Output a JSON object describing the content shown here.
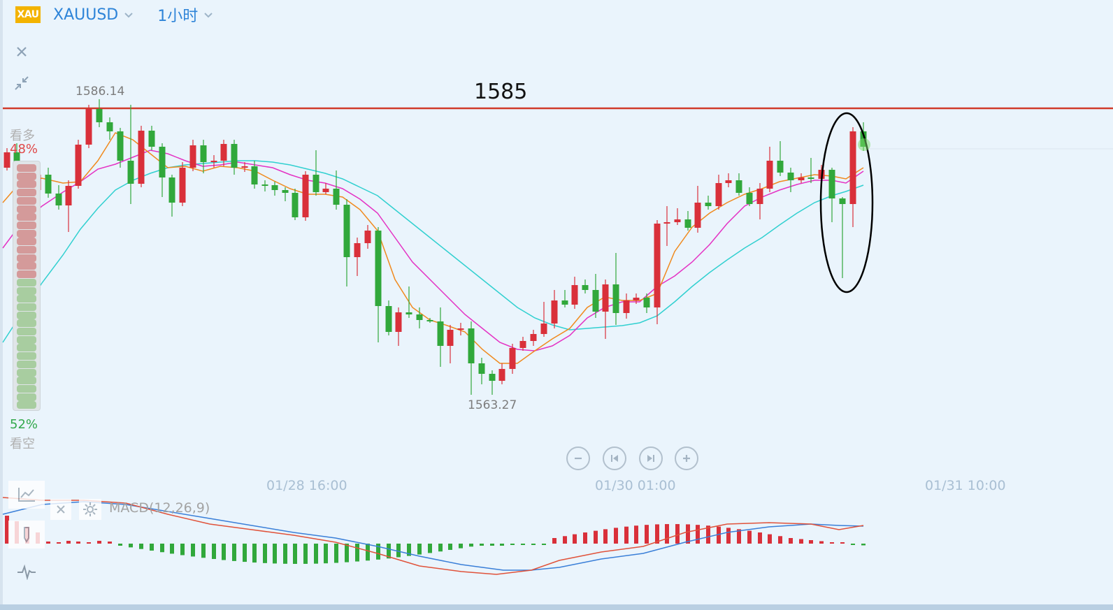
{
  "header": {
    "logo_text": "XAU",
    "symbol": "XAUUSD",
    "timeframe": "1小时"
  },
  "chart": {
    "high_label": "1586.14",
    "low_label": "1563.27",
    "resistance_label": "1585",
    "time_labels": [
      "01/28 16:00",
      "01/30 01:00",
      "01/31 10:00"
    ],
    "colors": {
      "up": "#d9303a",
      "down": "#31a83b",
      "ma_short": "#f08a1e",
      "ma_mid": "#e432c4",
      "ma_long": "#31d0d0",
      "resistance": "#d03a2a",
      "macd_dif": "#3a7fd8",
      "macd_dea": "#e0523a"
    }
  },
  "sentiment": {
    "bull_word": "看多",
    "bull_pct": "48%",
    "bear_pct": "52%",
    "bear_word": "看空",
    "bull_share": 0.48,
    "bear_share": 0.52
  },
  "macd": {
    "title": "MACD(12,26,9)"
  },
  "icons": {
    "close": "close-icon",
    "collapse": "collapse-icon",
    "zoom_out": "zoom-out-icon",
    "prev": "skip-back-icon",
    "next": "skip-forward-icon",
    "zoom_in": "zoom-in-icon",
    "indicator": "line-chart-icon",
    "drawing": "pencil-icon",
    "oscillator": "pulse-icon",
    "gear": "gear-icon"
  }
}
